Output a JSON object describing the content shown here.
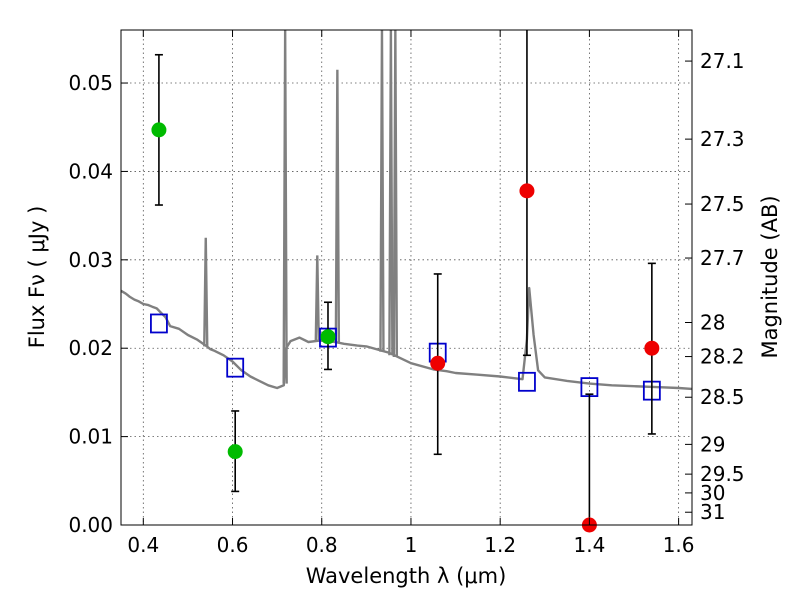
{
  "chart_data": {
    "type": "scatter",
    "xlabel": "Wavelength  λ (μm)",
    "ylabel": "Flux  Fν  ( μJy )",
    "y2label": "Magnitude (AB)",
    "xlim": [
      0.35,
      1.63
    ],
    "ylim": [
      0.0,
      0.056
    ],
    "xticks": [
      0.4,
      0.6,
      0.8,
      1.0,
      1.2,
      1.4,
      1.6
    ],
    "xtick_labels": [
      "0.4",
      "0.6",
      "0.8",
      "1",
      "1.2",
      "1.4",
      "1.6"
    ],
    "yticks": [
      0.0,
      0.01,
      0.02,
      0.03,
      0.04,
      0.05
    ],
    "ytick_labels": [
      "0.00",
      "0.01",
      "0.02",
      "0.03",
      "0.04",
      "0.05"
    ],
    "mag_ticks": [
      27.1,
      27.3,
      27.5,
      27.7,
      28,
      28.2,
      28.5,
      29,
      29.5,
      30,
      31
    ],
    "mag_tick_labels": [
      "27.1",
      "27.3",
      "27.5",
      "27.7",
      "28",
      "28.2",
      "28.5",
      "29",
      "29.5",
      "30",
      "31"
    ],
    "grid": true,
    "colors": {
      "sed": "#808080",
      "green_points": "#00bb00",
      "red_points": "#ee0000",
      "model_squares": "#0000cc",
      "errorbars": "#000000"
    },
    "sed_model": {
      "x": [
        0.35,
        0.36,
        0.37,
        0.38,
        0.39,
        0.4,
        0.41,
        0.42,
        0.43,
        0.44,
        0.45,
        0.46,
        0.48,
        0.5,
        0.52,
        0.54,
        0.55,
        0.56,
        0.58,
        0.6,
        0.62,
        0.64,
        0.66,
        0.68,
        0.7,
        0.715,
        0.72,
        0.73,
        0.75,
        0.77,
        0.8,
        0.83,
        0.85,
        0.88,
        0.9,
        0.95,
        1.0,
        1.05,
        1.08,
        1.1,
        1.15,
        1.2,
        1.25,
        1.26,
        1.265,
        1.275,
        1.285,
        1.3,
        1.35,
        1.4,
        1.45,
        1.5,
        1.55,
        1.6,
        1.63
      ],
      "y": [
        0.0265,
        0.0262,
        0.0258,
        0.0255,
        0.0253,
        0.025,
        0.0249,
        0.0247,
        0.0245,
        0.024,
        0.0235,
        0.0225,
        0.0222,
        0.0215,
        0.021,
        0.0203,
        0.0199,
        0.0197,
        0.0192,
        0.0185,
        0.0175,
        0.0168,
        0.0163,
        0.0158,
        0.0155,
        0.0158,
        0.02,
        0.0208,
        0.0212,
        0.0207,
        0.0209,
        0.0207,
        0.0205,
        0.0203,
        0.0202,
        0.0195,
        0.0183,
        0.0176,
        0.0174,
        0.0172,
        0.017,
        0.0168,
        0.0165,
        0.021,
        0.0268,
        0.0215,
        0.0175,
        0.0167,
        0.0163,
        0.016,
        0.0158,
        0.0157,
        0.0156,
        0.0155,
        0.0154
      ]
    },
    "sed_lines": [
      {
        "x": 0.54,
        "peak": 0.0325,
        "base": 0.0202
      },
      {
        "x": 0.718,
        "peak": 0.056,
        "base": 0.016
      },
      {
        "x": 0.79,
        "peak": 0.0305,
        "base": 0.0208
      },
      {
        "x": 0.835,
        "peak": 0.0515,
        "base": 0.0207
      },
      {
        "x": 0.935,
        "peak": 0.056,
        "base": 0.0196
      },
      {
        "x": 0.955,
        "peak": 0.056,
        "base": 0.0192
      },
      {
        "x": 0.965,
        "peak": 0.056,
        "base": 0.019
      }
    ],
    "model_photometry": {
      "x": [
        0.435,
        0.606,
        0.814,
        1.06,
        1.26,
        1.4,
        1.54
      ],
      "y": [
        0.0228,
        0.0178,
        0.0212,
        0.0195,
        0.0162,
        0.0156,
        0.0152
      ]
    },
    "observed_green": {
      "x": [
        0.435,
        0.606,
        0.814
      ],
      "y": [
        0.0447,
        0.0083,
        0.0213
      ],
      "err_low": [
        0.0362,
        0.0038,
        0.0176
      ],
      "err_high": [
        0.0532,
        0.0129,
        0.0252
      ]
    },
    "observed_red": {
      "x": [
        1.06,
        1.26,
        1.4,
        1.54
      ],
      "y": [
        0.0183,
        0.0378,
        0.0,
        0.02
      ],
      "err_low": [
        0.008,
        0.0192,
        0.0,
        0.0103
      ],
      "err_high": [
        0.0284,
        0.056,
        0.0148,
        0.0296
      ]
    }
  }
}
